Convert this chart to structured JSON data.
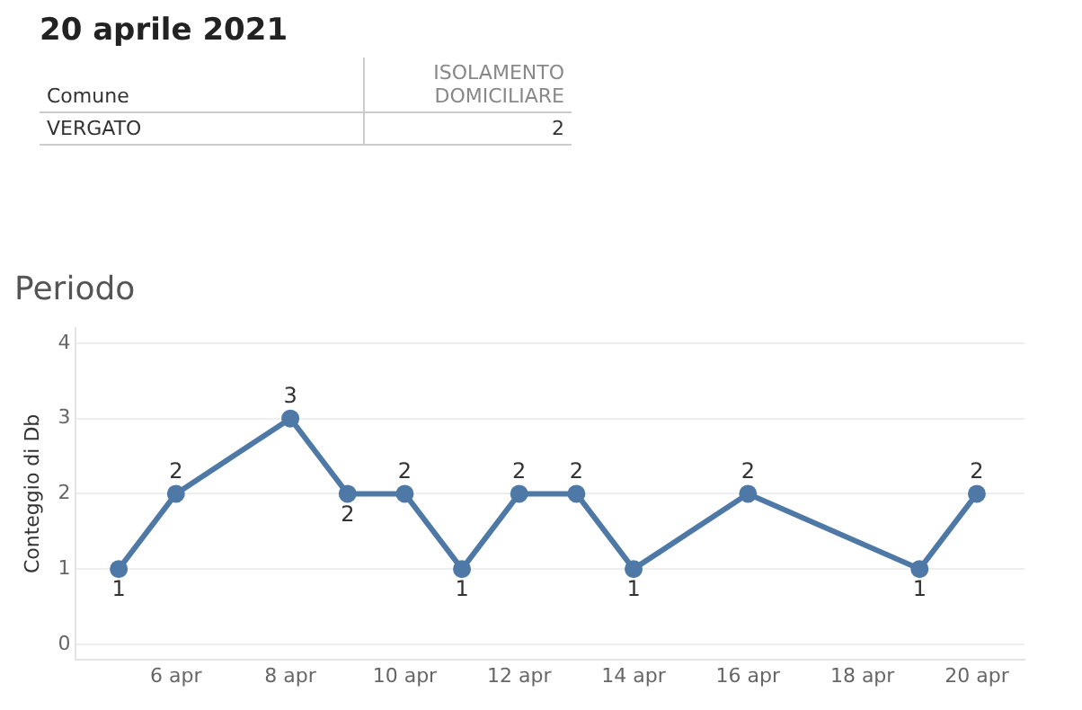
{
  "chart_data": {
    "type": "line",
    "title": "Periodo",
    "ylabel": "Conteggio di Db",
    "annotations": [
      "20 aprile 2021",
      "Comune",
      "ISOLAMENTO DOMICILIARE",
      "VERGATO",
      "2"
    ],
    "x": [
      "2021-04-05",
      "2021-04-06",
      "2021-04-08",
      "2021-04-09",
      "2021-04-10",
      "2021-04-11",
      "2021-04-12",
      "2021-04-13",
      "2021-04-14",
      "2021-04-16",
      "2021-04-19",
      "2021-04-20"
    ],
    "series": [
      {
        "color": "#4e79a7",
        "values": [
          1,
          2,
          3,
          2,
          2,
          1,
          2,
          2,
          1,
          2,
          1,
          2
        ]
      }
    ],
    "xlim": [
      "2021-04-04T06:00",
      "2021-04-20T20:00"
    ],
    "xticks": [
      {
        "value": "2021-04-06",
        "label": "6 apr"
      },
      {
        "value": "2021-04-08",
        "label": "8 apr"
      },
      {
        "value": "2021-04-10",
        "label": "10 apr"
      },
      {
        "value": "2021-04-12",
        "label": "12 apr"
      },
      {
        "value": "2021-04-14",
        "label": "14 apr"
      },
      {
        "value": "2021-04-16",
        "label": "16 apr"
      },
      {
        "value": "2021-04-18",
        "label": "18 apr"
      },
      {
        "value": "2021-04-20",
        "label": "20 apr"
      }
    ],
    "ylim": [
      -0.2,
      4.2
    ],
    "yticks": [
      0,
      1,
      2,
      3,
      4
    ],
    "grid": "y",
    "marker": "circle",
    "line_style": "solid",
    "data_labels": true
  }
}
